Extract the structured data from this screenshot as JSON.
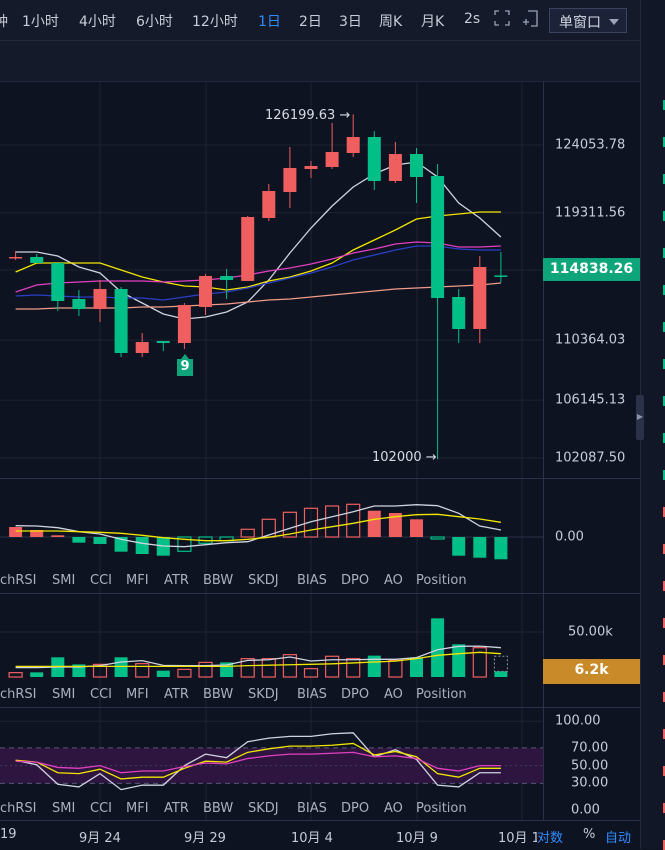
{
  "toolbar": {
    "intervals": [
      {
        "label": "钟"
      },
      {
        "label": "1小时"
      },
      {
        "label": "4小时"
      },
      {
        "label": "6小时"
      },
      {
        "label": "12小时"
      },
      {
        "label": "1日",
        "active": true
      },
      {
        "label": "2日"
      },
      {
        "label": "3日"
      },
      {
        "label": "周K"
      },
      {
        "label": "月K"
      },
      {
        "label": "2s"
      }
    ],
    "layout_select": "单窗口",
    "icons": [
      "fullscreen-icon",
      "add-window-icon"
    ]
  },
  "price_axis": {
    "labels": [
      "124053.78",
      "119311.56",
      "110364.03",
      "106145.13",
      "102087.50"
    ],
    "values": [
      124053.78,
      119311.56,
      110364.03,
      106145.13,
      102087.5
    ],
    "current_price": "114838.26"
  },
  "annotations": {
    "high": "126199.63 →",
    "low": "102000 →",
    "td_count": "9"
  },
  "macd_axis": {
    "zero": "0.00"
  },
  "volume_axis": {
    "label": "50.00k",
    "current": "6.2k"
  },
  "rsi_axis": {
    "labels": [
      "100.00",
      "70.00",
      "50.00",
      "30.00",
      "0.00"
    ],
    "values": [
      100,
      70,
      50,
      30,
      0
    ]
  },
  "indicator_tabs": [
    "chRSI",
    "SMI",
    "CCI",
    "MFI",
    "ATR",
    "BBW",
    "SKDJ",
    "BIAS",
    "DPO",
    "AO",
    "Position"
  ],
  "dates": [
    "19",
    "9月 24",
    "9月 29",
    "10月 4",
    "10月 9",
    "10月 1"
  ],
  "bottom_controls": {
    "log": "对数",
    "percent": "%",
    "auto": "自动"
  },
  "colors": {
    "up": "#ef5f5f",
    "down": "#00c087",
    "accent": "#2f8cff",
    "volume_tag": "#c98a2a"
  },
  "chart_data": [
    {
      "type": "candlestick",
      "dates": [
        "9/20",
        "9/21",
        "9/22",
        "9/23",
        "9/24",
        "9/25",
        "9/26",
        "9/27",
        "9/28",
        "9/29",
        "9/30",
        "10/1",
        "10/2",
        "10/3",
        "10/4",
        "10/5",
        "10/6",
        "10/7",
        "10/8",
        "10/9",
        "10/10",
        "10/11",
        "10/12",
        "10/13"
      ],
      "ohlc": [
        [
          116150,
          116615,
          115983,
          116194
        ],
        [
          116194,
          116404,
          115773,
          115773
        ],
        [
          115773,
          115843,
          112404,
          113106
        ],
        [
          113246,
          113878,
          112053,
          112544
        ],
        [
          112544,
          114580,
          111632,
          113948
        ],
        [
          113948,
          114088,
          109176,
          109457
        ],
        [
          109457,
          110860,
          109176,
          110228
        ],
        [
          110299,
          110299,
          109597,
          110158
        ],
        [
          110158,
          112966,
          109737,
          112825
        ],
        [
          112685,
          115001,
          112123,
          114860
        ],
        [
          114860,
          115352,
          113246,
          114580
        ],
        [
          114509,
          119071,
          114509,
          119001
        ],
        [
          118931,
          121317,
          118720,
          120826
        ],
        [
          120755,
          123914,
          119633,
          122440
        ],
        [
          122370,
          122931,
          121738,
          122580
        ],
        [
          122510,
          125598,
          122370,
          123563
        ],
        [
          123493,
          126199.63,
          123212,
          124615
        ],
        [
          124615,
          125037,
          120896,
          121528
        ],
        [
          121528,
          124265,
          121387,
          123422
        ],
        [
          123422,
          123843,
          119984,
          121808
        ],
        [
          121878,
          122721,
          102000,
          113317
        ],
        [
          113387,
          113948,
          110158,
          111141
        ],
        [
          111141,
          116264,
          110158,
          115492
        ],
        [
          114900,
          116545,
          114400,
          114838.26
        ]
      ],
      "ma": [
        {
          "color": "#d0d4e0",
          "values": [
            116545,
            116545,
            116264,
            115492,
            115071,
            113737,
            112965,
            112193,
            111843,
            111983,
            112334,
            113036,
            114580,
            116474,
            118229,
            119773,
            121106,
            122019,
            122650,
            122861,
            121808,
            119983,
            118931,
            117597
          ]
        },
        {
          "color": "#f2e600",
          "values": [
            115141,
            115773,
            115773,
            115773,
            115773,
            115281,
            114790,
            114439,
            114159,
            114088,
            113878,
            114088,
            114509,
            114790,
            115211,
            115773,
            116685,
            117387,
            118089,
            118861,
            119071,
            119211,
            119352,
            119352
          ]
        },
        {
          "color": "#e040c0",
          "values": [
            113737,
            114229,
            114369,
            114439,
            114509,
            114509,
            114509,
            114439,
            114509,
            114580,
            114720,
            114930,
            115211,
            115422,
            115702,
            116053,
            116474,
            116755,
            117106,
            117246,
            117176,
            116896,
            116896,
            116966
          ]
        },
        {
          "color": "#2a3fc8",
          "values": [
            113457,
            113527,
            113457,
            113387,
            113387,
            113316,
            113316,
            113176,
            113387,
            113597,
            113737,
            114018,
            114369,
            114720,
            115071,
            115492,
            115983,
            116334,
            116685,
            116966,
            116966,
            116755,
            116685,
            116685
          ]
        },
        {
          "color": "#f09a8a",
          "values": [
            112544,
            112544,
            112614,
            112614,
            112614,
            112614,
            112685,
            112685,
            112755,
            112825,
            112895,
            113036,
            113176,
            113246,
            113387,
            113527,
            113667,
            113808,
            113948,
            114018,
            114088,
            114159,
            114229,
            114369
          ]
        }
      ]
    },
    {
      "type": "bar",
      "name": "MACD",
      "histogram": [
        10,
        7,
        1.7,
        -5.7,
        -7,
        -14.7,
        -17,
        -18.7,
        -14.3,
        -6.3,
        -3.7,
        7.7,
        17.7,
        24.7,
        28.7,
        31,
        32.7,
        26.3,
        24,
        17.7,
        -2,
        -18.7,
        -20.7,
        -22.3
      ],
      "dif": [
        11.3,
        11,
        9.3,
        5.3,
        3,
        -2.3,
        -6.3,
        -9,
        -9.7,
        -7.7,
        -5.7,
        -4.7,
        2,
        8.7,
        15.3,
        20.3,
        25.3,
        31,
        31,
        32.3,
        31.3,
        23.7,
        11,
        7
      ],
      "dea": [
        6,
        6,
        6,
        5.3,
        4.7,
        3.7,
        1.7,
        -0.7,
        -2.3,
        -3.7,
        -3.7,
        -2.3,
        -0.3,
        3,
        7,
        10.3,
        13.7,
        17.7,
        20.3,
        22.3,
        22.7,
        20.3,
        18,
        14.7
      ]
    },
    {
      "type": "bar",
      "name": "Volume (k)",
      "values": [
        4.8,
        5.1,
        21.7,
        13.9,
        13.9,
        21.7,
        14.7,
        7.0,
        8.4,
        16.1,
        16.1,
        20.2,
        20.2,
        24.6,
        9.2,
        22.8,
        20.2,
        23.5,
        18.3,
        21.7,
        64.6,
        36.0,
        32.3,
        6.2
      ],
      "ma_white": [
        10.3,
        10.3,
        11,
        11,
        12.5,
        16.5,
        18,
        12.8,
        12.5,
        12.5,
        13.2,
        18.3,
        19,
        22,
        17.6,
        19,
        19,
        19.5,
        19.5,
        21.3,
        30,
        33.8,
        34,
        32.3
      ],
      "ma_yellow": [
        11.7,
        11.7,
        11.7,
        11.7,
        11.7,
        11.7,
        11.7,
        11.7,
        11.7,
        11.7,
        11.7,
        12.5,
        13,
        13.5,
        14,
        14.5,
        15.5,
        16.5,
        17.5,
        20.2,
        23.9,
        25.7,
        27.2,
        25.7
      ]
    },
    {
      "type": "line",
      "name": "RSI",
      "ylim": [
        0,
        100
      ],
      "band": [
        30,
        70
      ],
      "series": [
        {
          "color": "#d0d4e0",
          "values": [
            56,
            51,
            29,
            26,
            41,
            23,
            28,
            28,
            50,
            63,
            59,
            77,
            81,
            83,
            83,
            86,
            87,
            60,
            68,
            57,
            28,
            26,
            42,
            42
          ]
        },
        {
          "color": "#f2e600",
          "values": [
            56,
            54,
            42,
            41,
            46,
            35,
            37,
            37,
            47,
            55,
            54,
            65,
            69,
            72,
            72,
            73,
            75,
            62,
            66,
            60,
            41,
            37,
            47,
            47
          ]
        },
        {
          "color": "#e040c0",
          "values": [
            55,
            54,
            48,
            47,
            50,
            42,
            44,
            44,
            49,
            53,
            52,
            58,
            61,
            63,
            63,
            64,
            65,
            60,
            61,
            58,
            47,
            44,
            50,
            50
          ]
        }
      ]
    }
  ]
}
